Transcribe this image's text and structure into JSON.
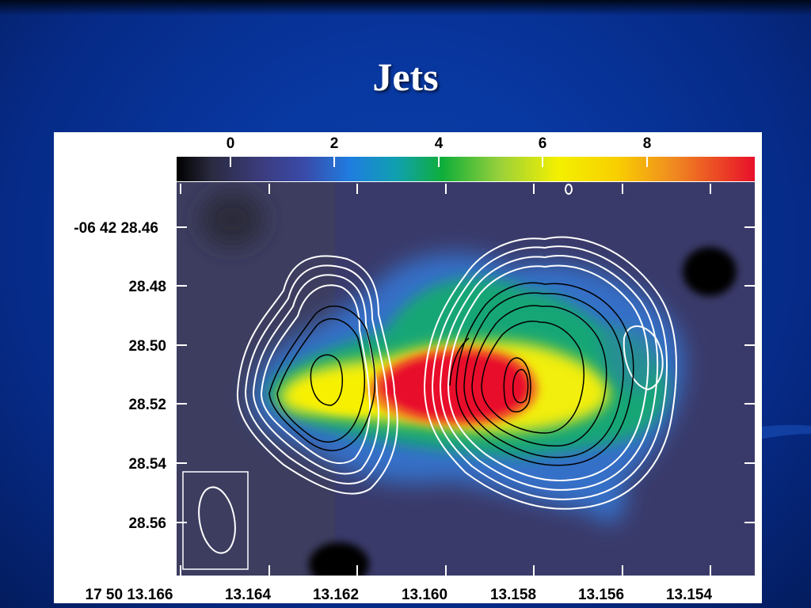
{
  "slide": {
    "title": "Jets"
  },
  "figure": {
    "colorbar_ticks": [
      "0",
      "2",
      "4",
      "6",
      "8"
    ],
    "y_tick_labels": [
      "-06 42 28.46",
      "28.48",
      "28.50",
      "28.52",
      "28.54",
      "28.56"
    ],
    "x_tick_labels": [
      "17 50 13.166",
      "13.164",
      "13.162",
      "13.160",
      "13.158",
      "13.156",
      "13.154"
    ]
  },
  "colors": {
    "background": "#0837a0",
    "title": "#ffffff",
    "map_background": "#3a3a6a"
  }
}
